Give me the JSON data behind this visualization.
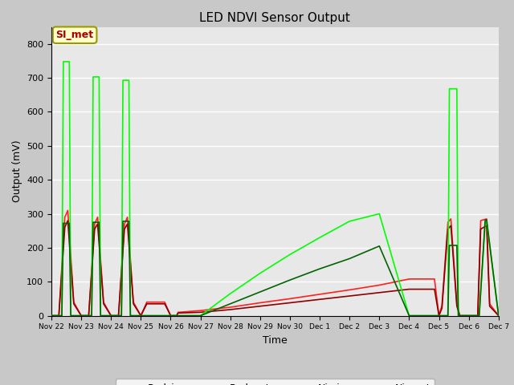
{
  "title": "LED NDVI Sensor Output",
  "xlabel": "Time",
  "ylabel": "Output (mV)",
  "ylim": [
    0,
    850
  ],
  "xlim": [
    0,
    15
  ],
  "fig_bg": "#c8c8c8",
  "plot_bg": "#e8e8e8",
  "grid_color": "#ffffff",
  "annotation_text": "SI_met",
  "annotation_bg": "#ffffcc",
  "annotation_border": "#999900",
  "annotation_text_color": "#aa0000",
  "x_tick_labels": [
    "Nov 22",
    "Nov 23",
    "Nov 24",
    "Nov 25",
    "Nov 26",
    "Nov 27",
    "Nov 28",
    "Nov 29",
    "Nov 30",
    "Dec 1",
    "Dec 2",
    "Dec 3",
    "Dec 4",
    "Dec 5",
    "Dec 6",
    "Dec 7"
  ],
  "colors": {
    "Red_in": "#ff2020",
    "Red_out": "#8b0000",
    "Nir_in": "#00ff00",
    "Nir_out": "#006400"
  },
  "series": {
    "Red_in": {
      "x": [
        0,
        0.25,
        0.45,
        0.55,
        0.75,
        1.0,
        1.25,
        1.45,
        1.55,
        1.75,
        2.0,
        2.25,
        2.45,
        2.55,
        2.75,
        3.0,
        3.2,
        3.8,
        4.0,
        4.2,
        4.25,
        5.0,
        6.0,
        7.0,
        8.0,
        9.0,
        10.0,
        11.0,
        12.0,
        12.85,
        13.0,
        13.1,
        13.3,
        13.4,
        13.6,
        13.7,
        14.0,
        14.3,
        14.4,
        14.6,
        14.7,
        15.0
      ],
      "y": [
        0,
        0,
        290,
        310,
        40,
        0,
        0,
        270,
        290,
        40,
        0,
        0,
        270,
        290,
        40,
        0,
        40,
        40,
        0,
        0,
        10,
        15,
        25,
        38,
        50,
        63,
        76,
        90,
        108,
        108,
        0,
        30,
        275,
        285,
        35,
        0,
        0,
        0,
        280,
        285,
        35,
        0
      ]
    },
    "Red_out": {
      "x": [
        0,
        0.25,
        0.45,
        0.55,
        0.75,
        1.0,
        1.25,
        1.45,
        1.55,
        1.75,
        2.0,
        2.25,
        2.45,
        2.55,
        2.75,
        3.0,
        3.2,
        3.8,
        4.0,
        4.2,
        4.25,
        5.0,
        6.0,
        7.0,
        8.0,
        9.0,
        10.0,
        11.0,
        12.0,
        12.85,
        13.0,
        13.1,
        13.3,
        13.4,
        13.6,
        13.7,
        14.0,
        14.3,
        14.4,
        14.6,
        14.7,
        15.0
      ],
      "y": [
        0,
        0,
        260,
        280,
        35,
        0,
        0,
        255,
        270,
        35,
        0,
        0,
        255,
        270,
        35,
        0,
        35,
        35,
        0,
        0,
        8,
        10,
        18,
        28,
        38,
        48,
        58,
        68,
        78,
        78,
        0,
        22,
        255,
        265,
        28,
        0,
        0,
        0,
        255,
        265,
        28,
        0
      ]
    },
    "Nir_in": {
      "x": [
        0,
        0.35,
        0.4,
        0.6,
        0.65,
        1.0,
        1.35,
        1.4,
        1.6,
        1.65,
        2.0,
        2.35,
        2.4,
        2.6,
        2.65,
        3.0,
        3.8,
        4.0,
        4.2,
        4.25,
        5.0,
        6.0,
        7.0,
        8.0,
        9.0,
        10.0,
        11.0,
        12.0,
        12.85,
        13.0,
        13.3,
        13.35,
        13.6,
        13.65,
        14.0,
        14.3,
        14.35,
        14.55,
        14.6,
        15.0
      ],
      "y": [
        0,
        0,
        748,
        748,
        0,
        0,
        0,
        703,
        703,
        0,
        0,
        0,
        693,
        693,
        0,
        0,
        0,
        0,
        0,
        0,
        0,
        65,
        125,
        180,
        230,
        278,
        300,
        0,
        0,
        0,
        0,
        668,
        668,
        0,
        0,
        0,
        0,
        275,
        275,
        0
      ]
    },
    "Nir_out": {
      "x": [
        0,
        0.35,
        0.4,
        0.6,
        0.65,
        1.0,
        1.35,
        1.4,
        1.6,
        1.65,
        2.0,
        2.35,
        2.4,
        2.6,
        2.65,
        3.0,
        3.8,
        4.0,
        4.2,
        4.25,
        5.0,
        6.0,
        7.0,
        8.0,
        9.0,
        10.0,
        11.0,
        12.0,
        12.85,
        13.0,
        13.3,
        13.35,
        13.6,
        13.65,
        14.0,
        14.3,
        14.35,
        14.55,
        14.6,
        15.0
      ],
      "y": [
        0,
        0,
        272,
        272,
        0,
        0,
        0,
        275,
        275,
        0,
        0,
        0,
        278,
        278,
        0,
        0,
        0,
        0,
        0,
        0,
        0,
        35,
        70,
        105,
        138,
        168,
        205,
        0,
        0,
        0,
        0,
        207,
        207,
        0,
        0,
        0,
        0,
        282,
        282,
        0
      ]
    }
  }
}
